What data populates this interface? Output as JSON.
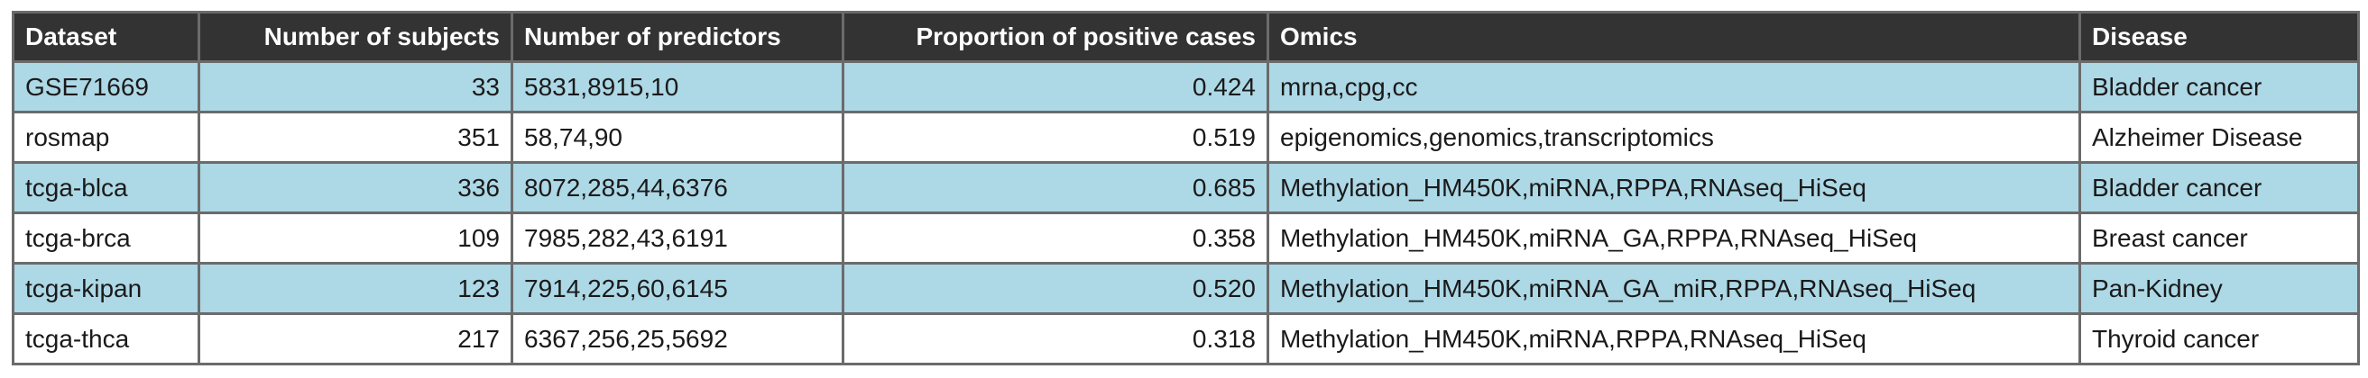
{
  "table": {
    "headers": [
      {
        "label": "Dataset",
        "align": "left"
      },
      {
        "label": "Number of subjects",
        "align": "right"
      },
      {
        "label": "Number of predictors",
        "align": "left"
      },
      {
        "label": "Proportion of positive cases",
        "align": "right"
      },
      {
        "label": "Omics",
        "align": "left"
      },
      {
        "label": "Disease",
        "align": "left"
      }
    ],
    "rows": [
      {
        "dataset": "GSE71669",
        "subjects": "33",
        "predictors": "5831,8915,10",
        "proportion": "0.424",
        "omics": "mrna,cpg,cc",
        "disease": "Bladder cancer"
      },
      {
        "dataset": "rosmap",
        "subjects": "351",
        "predictors": "58,74,90",
        "proportion": "0.519",
        "omics": "epigenomics,genomics,transcriptomics",
        "disease": "Alzheimer Disease"
      },
      {
        "dataset": "tcga-blca",
        "subjects": "336",
        "predictors": "8072,285,44,6376",
        "proportion": "0.685",
        "omics": "Methylation_HM450K,miRNA,RPPA,RNAseq_HiSeq",
        "disease": "Bladder cancer"
      },
      {
        "dataset": "tcga-brca",
        "subjects": "109",
        "predictors": "7985,282,43,6191",
        "proportion": "0.358",
        "omics": "Methylation_HM450K,miRNA_GA,RPPA,RNAseq_HiSeq",
        "disease": "Breast cancer"
      },
      {
        "dataset": "tcga-kipan",
        "subjects": "123",
        "predictors": "7914,225,60,6145",
        "proportion": "0.520",
        "omics": "Methylation_HM450K,miRNA_GA_miR,RPPA,RNAseq_HiSeq",
        "disease": "Pan-Kidney"
      },
      {
        "dataset": "tcga-thca",
        "subjects": "217",
        "predictors": "6367,256,25,5692",
        "proportion": "0.318",
        "omics": "Methylation_HM450K,miRNA,RPPA,RNAseq_HiSeq",
        "disease": "Thyroid cancer"
      }
    ]
  },
  "colors": {
    "header_bg": "#333333",
    "header_text": "#ffffff",
    "row_shaded": "#add8e6",
    "row_plain": "#ffffff",
    "border": "#6b6b6b"
  }
}
